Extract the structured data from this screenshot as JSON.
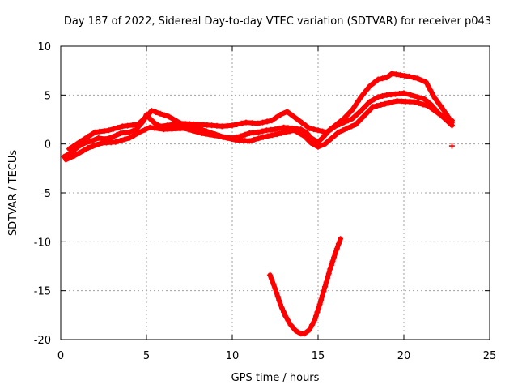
{
  "chart_data": {
    "type": "scatter",
    "title": "Day 187 of 2022, Sidereal Day-to-day VTEC variation (SDTVAR) for receiver p043",
    "xlabel": "GPS time / hours",
    "ylabel": "SDTVAR / TECUs",
    "xlim": [
      0,
      25
    ],
    "ylim": [
      -20,
      10
    ],
    "xticks": [
      0,
      5,
      10,
      15,
      20,
      25
    ],
    "yticks": [
      -20,
      -15,
      -10,
      -5,
      0,
      5,
      10
    ],
    "grid": true,
    "marker": "+",
    "colors": {
      "series": "#ff0000",
      "grid": "#a0a0a0",
      "axis": "#000000"
    },
    "series": [
      {
        "name": "main-track",
        "x": [
          0.2,
          0.6,
          1.0,
          1.4,
          1.8,
          2.2,
          2.6,
          3.0,
          3.5,
          4.0,
          4.4,
          4.8,
          5.0,
          5.2,
          5.5,
          5.8,
          6.2,
          6.6,
          7.0,
          7.5,
          8.0,
          8.5,
          9.0,
          9.5,
          10.0,
          10.5,
          11.0,
          11.5,
          12.0,
          12.5,
          13.0,
          13.5,
          14.0,
          14.3,
          14.6,
          15.0,
          15.3,
          15.6,
          16.0,
          16.5,
          17.0,
          17.5,
          18.0,
          18.5,
          19.0,
          19.5,
          20.0,
          20.4,
          20.8,
          21.2,
          21.6,
          22.0,
          22.4,
          22.8
        ],
        "y": [
          -1.3,
          -0.9,
          -0.3,
          0.1,
          0.3,
          0.6,
          0.5,
          0.7,
          1.1,
          1.2,
          1.5,
          2.3,
          3.0,
          2.6,
          2.1,
          1.8,
          1.9,
          2.0,
          2.0,
          1.8,
          1.6,
          1.3,
          1.0,
          0.7,
          0.6,
          0.8,
          1.1,
          1.2,
          1.4,
          1.5,
          1.7,
          1.6,
          1.5,
          1.2,
          0.6,
          0.2,
          0.7,
          1.3,
          1.8,
          2.2,
          2.6,
          3.4,
          4.3,
          4.8,
          5.0,
          5.1,
          5.2,
          5.0,
          4.8,
          4.6,
          4.0,
          3.2,
          2.6,
          2.4
        ]
      },
      {
        "name": "upper-spread",
        "x": [
          0.5,
          1.2,
          2.0,
          2.8,
          3.6,
          4.5,
          5.0,
          5.3,
          5.8,
          6.3,
          7.0,
          8.0,
          8.8,
          9.4,
          10.0,
          10.8,
          11.5,
          12.3,
          12.8,
          13.2,
          14.5,
          15.5,
          16.5,
          17.0,
          17.5,
          18.0,
          18.5,
          19.0,
          19.3,
          20.3,
          20.8,
          21.3,
          21.8,
          22.3,
          22.8
        ],
        "y": [
          -0.5,
          0.3,
          1.2,
          1.4,
          1.8,
          2.0,
          2.8,
          3.4,
          3.1,
          2.8,
          2.1,
          2.0,
          1.9,
          1.8,
          1.9,
          2.2,
          2.1,
          2.4,
          3.0,
          3.3,
          1.6,
          1.2,
          2.6,
          3.5,
          4.8,
          5.9,
          6.6,
          6.8,
          7.2,
          6.9,
          6.7,
          6.3,
          4.7,
          3.5,
          2.2
        ]
      },
      {
        "name": "lower-spread",
        "x": [
          0.3,
          0.8,
          1.6,
          2.4,
          3.2,
          4.0,
          4.6,
          5.2,
          6.0,
          7.2,
          8.2,
          9.2,
          10.2,
          11.0,
          11.8,
          12.6,
          13.6,
          14.2,
          14.6,
          15.0,
          15.4,
          16.2,
          17.2,
          18.2,
          19.6,
          20.6,
          21.4,
          22.2,
          22.8
        ],
        "y": [
          -1.6,
          -1.2,
          -0.4,
          0.1,
          0.2,
          0.6,
          1.2,
          1.7,
          1.5,
          1.6,
          1.1,
          0.8,
          0.4,
          0.3,
          0.7,
          1.0,
          1.4,
          0.8,
          0.1,
          -0.3,
          0.0,
          1.2,
          2.0,
          3.8,
          4.4,
          4.3,
          3.9,
          2.9,
          1.9
        ]
      },
      {
        "name": "dip-arc",
        "x": [
          12.2,
          12.5,
          12.8,
          13.1,
          13.4,
          13.7,
          14.0,
          14.2,
          14.5,
          14.8,
          15.1,
          15.4,
          15.7,
          16.0,
          16.3
        ],
        "y": [
          -13.4,
          -14.8,
          -16.4,
          -17.6,
          -18.5,
          -19.1,
          -19.4,
          -19.4,
          -19.0,
          -18.0,
          -16.4,
          -14.6,
          -12.8,
          -11.2,
          -9.7
        ]
      },
      {
        "name": "isolated",
        "x": [
          22.8
        ],
        "y": [
          -0.2
        ]
      }
    ]
  }
}
